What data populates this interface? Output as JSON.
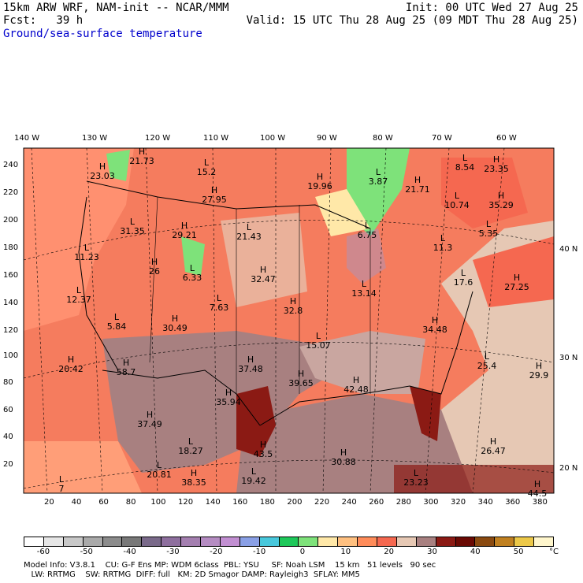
{
  "header": {
    "line1_left": "15km ARW WRF, NAM-init -- NCAR/MMM",
    "line2_left": "Fcst:   39 h",
    "line1_right": "Init: 00 UTC Wed 27 Aug 25",
    "line2_right": "Valid: 15 UTC Thu 28 Aug 25 (09 MDT Thu 28 Aug 25)",
    "field_name": "Ground/sea-surface temperature"
  },
  "lon_labels": [
    "140 W",
    "130 W",
    "120 W",
    "110 W",
    "100 W",
    "90 W",
    "80 W",
    "70 W",
    "60 W"
  ],
  "lat_labels": [
    "40 N",
    "30 N",
    "20 N"
  ],
  "y_ticks": [
    "240",
    "220",
    "200",
    "180",
    "160",
    "140",
    "120",
    "100",
    "80",
    "60",
    "40",
    "20"
  ],
  "x_ticks": [
    "20",
    "40",
    "60",
    "80",
    "100",
    "120",
    "140",
    "160",
    "180",
    "200",
    "220",
    "240",
    "260",
    "280",
    "300",
    "320",
    "340",
    "360",
    "380"
  ],
  "centers": [
    {
      "type": "H",
      "value": "21.73"
    },
    {
      "type": "L",
      "value": "15.2"
    },
    {
      "type": "H",
      "value": "23.03"
    },
    {
      "type": "H",
      "value": "27.95"
    },
    {
      "type": "H",
      "value": "19.96"
    },
    {
      "type": "L",
      "value": "3.87"
    },
    {
      "type": "H",
      "value": "21.71"
    },
    {
      "type": "L",
      "value": "8.54"
    },
    {
      "type": "H",
      "value": "23.35"
    },
    {
      "type": "L",
      "value": "10.74"
    },
    {
      "type": "H",
      "value": "35.29"
    },
    {
      "type": "L",
      "value": "31.35"
    },
    {
      "type": "H",
      "value": "29.21"
    },
    {
      "type": "L",
      "value": "21.43"
    },
    {
      "type": "L",
      "value": "6.75"
    },
    {
      "type": "L",
      "value": "5.35"
    },
    {
      "type": "L",
      "value": "11.23"
    },
    {
      "type": "H",
      "value": "26"
    },
    {
      "type": "L",
      "value": "6.33"
    },
    {
      "type": "H",
      "value": "32.47"
    },
    {
      "type": "L",
      "value": "11.3"
    },
    {
      "type": "L",
      "value": "17.6"
    },
    {
      "type": "H",
      "value": "27.25"
    },
    {
      "type": "L",
      "value": "12.37"
    },
    {
      "type": "L",
      "value": "7.63"
    },
    {
      "type": "L",
      "value": "13.14"
    },
    {
      "type": "H",
      "value": "30.49"
    },
    {
      "type": "L",
      "value": "5.84"
    },
    {
      "type": "H",
      "value": "32.8"
    },
    {
      "type": "H",
      "value": "34.48"
    },
    {
      "type": "L",
      "value": "15.07"
    },
    {
      "type": "H",
      "value": "20.42"
    },
    {
      "type": "H",
      "value": "58.7"
    },
    {
      "type": "H",
      "value": "37.48"
    },
    {
      "type": "L",
      "value": "25.4"
    },
    {
      "type": "H",
      "value": "29.9"
    },
    {
      "type": "H",
      "value": "39.65"
    },
    {
      "type": "H",
      "value": "42.48"
    },
    {
      "type": "H",
      "value": "35.94"
    },
    {
      "type": "H",
      "value": "37.49"
    },
    {
      "type": "L",
      "value": "18.27"
    },
    {
      "type": "H",
      "value": "43.5"
    },
    {
      "type": "H",
      "value": "30.88"
    },
    {
      "type": "H",
      "value": "26.47"
    },
    {
      "type": "L",
      "value": "20.81"
    },
    {
      "type": "H",
      "value": "38.35"
    },
    {
      "type": "L",
      "value": "19.42"
    },
    {
      "type": "L",
      "value": "23.23"
    },
    {
      "type": "H",
      "value": "44.5"
    },
    {
      "type": "L",
      "value": "7"
    }
  ],
  "colorbar": {
    "labels": [
      "-60",
      "-50",
      "-40",
      "-30",
      "-20",
      "-10",
      "0",
      "10",
      "20",
      "30",
      "40",
      "50"
    ],
    "unit": "°C",
    "colors": [
      "#ffffff",
      "#e6e6e6",
      "#c8c8c8",
      "#aaaaaa",
      "#8c8c8c",
      "#787878",
      "#7a6a8a",
      "#8e6f9e",
      "#a47fb0",
      "#b58cc2",
      "#c28fd2",
      "#8aa0e6",
      "#48c8dc",
      "#1ec85a",
      "#7ee27a",
      "#ffe8a8",
      "#ffc080",
      "#ff8c5a",
      "#f56850",
      "#e6c8b4",
      "#a88080",
      "#8b1a14",
      "#6a0a04",
      "#8a4a10",
      "#c08020",
      "#ecc848",
      "#fff6cc"
    ]
  },
  "footer": {
    "line1": "Model Info: V3.8.1    CU: G-F Ens MP: WDM 6class  PBL: YSU     SF: Noah LSM    15 km   51 levels   90 sec",
    "line2": "   LW: RRTMG    SW: RRTMG  DIFF: full   KM: 2D Smagor DAMP: Rayleigh3  SFLAY: MM5"
  }
}
